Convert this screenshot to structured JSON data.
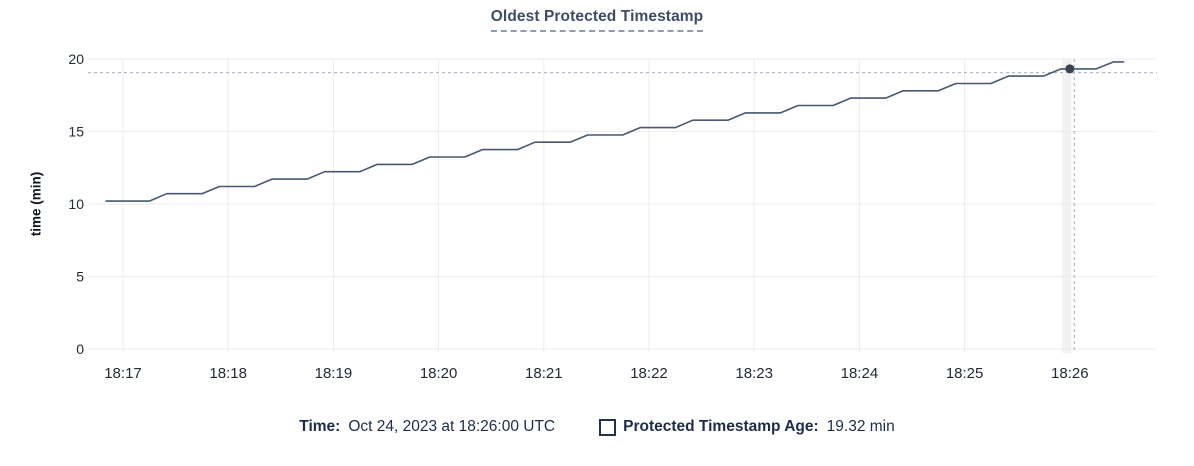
{
  "title": "Oldest Protected Timestamp",
  "tooltip_legend": {
    "time_label": "Time:",
    "time_value": "Oct 24, 2023 at 18:26:00 UTC",
    "series_label": "Protected Timestamp Age:",
    "series_value": "19.32 min"
  },
  "colors": {
    "title": "#3e4c66",
    "line": "#475872",
    "dot": "#394455",
    "grid": "#ececec",
    "hover_band": "#f2f2f2",
    "crosshair": "#afbbc9",
    "tick_text": "#242a35",
    "legend_text": "#1c2c4a"
  },
  "chart_data": {
    "type": "line",
    "title": "Oldest Protected Timestamp",
    "xlabel": "",
    "ylabel": "time (min)",
    "ylim": [
      0,
      20
    ],
    "y_ticks": [
      0,
      5,
      10,
      15,
      20
    ],
    "x_tick_labels": [
      "18:17",
      "18:18",
      "18:19",
      "18:20",
      "18:21",
      "18:22",
      "18:23",
      "18:24",
      "18:25",
      "18:26"
    ],
    "grid": true,
    "legend_position": "bottom",
    "series": [
      {
        "name": "Protected Timestamp Age",
        "unit": "min",
        "color": "#475872",
        "points": [
          [
            "18:16:50",
            10.2
          ],
          [
            "18:17:15",
            10.2
          ],
          [
            "18:17:25",
            10.71
          ],
          [
            "18:17:45",
            10.71
          ],
          [
            "18:17:55",
            11.21
          ],
          [
            "18:18:15",
            11.21
          ],
          [
            "18:18:25",
            11.72
          ],
          [
            "18:18:45",
            11.72
          ],
          [
            "18:18:55",
            12.23
          ],
          [
            "18:19:15",
            12.23
          ],
          [
            "18:19:25",
            12.73
          ],
          [
            "18:19:45",
            12.73
          ],
          [
            "18:19:55",
            13.24
          ],
          [
            "18:20:15",
            13.24
          ],
          [
            "18:20:25",
            13.75
          ],
          [
            "18:20:45",
            13.75
          ],
          [
            "18:20:55",
            14.26
          ],
          [
            "18:21:15",
            14.26
          ],
          [
            "18:21:25",
            14.76
          ],
          [
            "18:21:45",
            14.76
          ],
          [
            "18:21:55",
            15.27
          ],
          [
            "18:22:15",
            15.27
          ],
          [
            "18:22:25",
            15.78
          ],
          [
            "18:22:45",
            15.78
          ],
          [
            "18:22:55",
            16.28
          ],
          [
            "18:23:15",
            16.28
          ],
          [
            "18:23:25",
            16.79
          ],
          [
            "18:23:45",
            16.79
          ],
          [
            "18:23:55",
            17.3
          ],
          [
            "18:24:15",
            17.3
          ],
          [
            "18:24:25",
            17.81
          ],
          [
            "18:24:45",
            17.81
          ],
          [
            "18:24:55",
            18.31
          ],
          [
            "18:25:15",
            18.31
          ],
          [
            "18:25:25",
            18.82
          ],
          [
            "18:25:45",
            18.82
          ],
          [
            "18:25:55",
            19.32
          ],
          [
            "18:26:15",
            19.32
          ],
          [
            "18:26:25",
            19.8
          ],
          [
            "18:26:31",
            19.8
          ]
        ]
      }
    ],
    "highlight": {
      "time": "18:26:00",
      "value": 19.32
    }
  }
}
